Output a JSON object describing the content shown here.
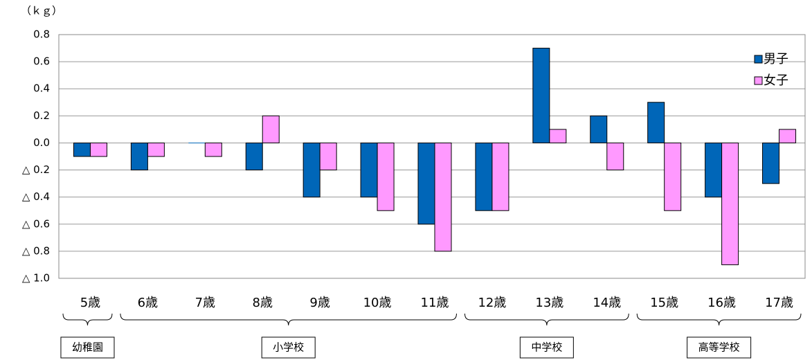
{
  "chart_data": {
    "type": "bar",
    "unit_label": "（ｋｇ）",
    "categories": [
      "5歳",
      "6歳",
      "7歳",
      "8歳",
      "9歳",
      "10歳",
      "11歳",
      "12歳",
      "13歳",
      "14歳",
      "15歳",
      "16歳",
      "17歳"
    ],
    "series": [
      {
        "name": "男子",
        "color": "#0066b8",
        "values": [
          -0.1,
          -0.2,
          0,
          -0.2,
          -0.4,
          -0.4,
          -0.6,
          -0.5,
          0.7,
          0.2,
          0.3,
          -0.4,
          -0.3
        ]
      },
      {
        "name": "女子",
        "color": "#ff99ff",
        "values": [
          -0.1,
          -0.1,
          -0.1,
          0.2,
          -0.2,
          -0.5,
          -0.8,
          -0.5,
          0.1,
          -0.2,
          -0.5,
          -0.9,
          0.1
        ]
      }
    ],
    "ylim": [
      -1.0,
      0.8
    ],
    "yticks": [
      0.8,
      0.6,
      0.4,
      0.2,
      {
        "value": 0,
        "label": "0.0"
      },
      {
        "value": -0.2,
        "label": "△ 0.2"
      },
      {
        "value": -0.4,
        "label": "△ 0.4"
      },
      {
        "value": -0.6,
        "label": "△ 0.6"
      },
      {
        "value": -0.8,
        "label": "△ 0.8"
      },
      {
        "value": -1.0,
        "label": "△ 1.0"
      }
    ],
    "grid": true,
    "legend": "top-right",
    "groups": [
      "幼稚園",
      "小学校",
      "中学校",
      "高等学校"
    ]
  }
}
